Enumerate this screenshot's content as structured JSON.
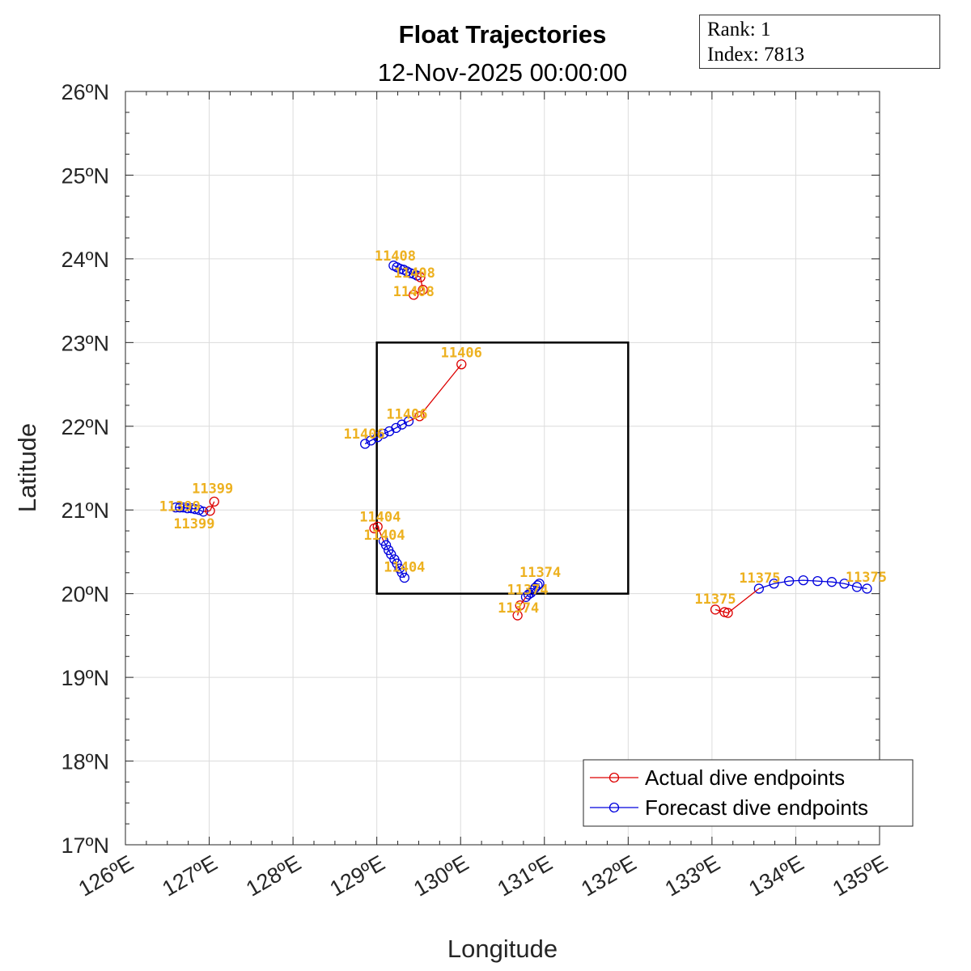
{
  "chart_data": {
    "type": "line",
    "title": "Float Trajectories",
    "subtitle": "12-Nov-2025 00:00:00",
    "xlabel": "Longitude",
    "ylabel": "Latitude",
    "xlim": [
      126,
      135
    ],
    "ylim": [
      17,
      26
    ],
    "xticks": [
      "126ºE",
      "127ºE",
      "128ºE",
      "129ºE",
      "130ºE",
      "131ºE",
      "132ºE",
      "133ºE",
      "134ºE",
      "135ºE"
    ],
    "yticks": [
      "17ºN",
      "18ºN",
      "19ºN",
      "20ºN",
      "21ºN",
      "22ºN",
      "23ºN",
      "24ºN",
      "25ºN",
      "26ºN"
    ],
    "grid": true,
    "legend_position": "bottom-right",
    "region_box": {
      "lon": [
        129,
        132
      ],
      "lat": [
        20,
        23
      ],
      "color": "#000000"
    },
    "series": [
      {
        "name": "Actual dive endpoints",
        "color": "#DD0000",
        "marker": "circle"
      },
      {
        "name": "Forecast dive endpoints",
        "color": "#0000DD",
        "marker": "circle"
      }
    ],
    "floats": [
      {
        "id": "11408",
        "actual": {
          "lon": [
            129.44,
            129.55,
            129.52
          ],
          "lat": [
            23.57,
            23.63,
            23.78
          ]
        },
        "forecast": {
          "lon": [
            129.48,
            129.44,
            129.4,
            129.36,
            129.32,
            129.28,
            129.24,
            129.2
          ],
          "lat": [
            23.8,
            23.82,
            23.83,
            23.85,
            23.87,
            23.88,
            23.9,
            23.92
          ]
        }
      },
      {
        "id": "11406",
        "actual": {
          "lon": [
            130.01,
            129.51
          ],
          "lat": [
            22.74,
            22.12
          ]
        },
        "forecast": {
          "lon": [
            129.38,
            129.3,
            129.23,
            129.15,
            129.08,
            129.01,
            128.93,
            128.86
          ],
          "lat": [
            22.06,
            22.02,
            21.98,
            21.94,
            21.91,
            21.87,
            21.83,
            21.79
          ]
        }
      },
      {
        "id": "11399",
        "actual": {
          "lon": [
            127.06,
            127.01
          ],
          "lat": [
            21.1,
            20.99
          ]
        },
        "forecast": {
          "lon": [
            126.93,
            126.88,
            126.83,
            126.79,
            126.74,
            126.69,
            126.65,
            126.6
          ],
          "lat": [
            20.98,
            21.0,
            21.01,
            21.02,
            21.02,
            21.03,
            21.03,
            21.03
          ]
        }
      },
      {
        "id": "11404",
        "actual": {
          "lon": [
            128.97,
            129.01
          ],
          "lat": [
            20.78,
            20.8
          ]
        },
        "forecast": {
          "lon": [
            129.08,
            129.11,
            129.14,
            129.17,
            129.21,
            129.24,
            129.27,
            129.3,
            129.33
          ],
          "lat": [
            20.63,
            20.58,
            20.52,
            20.47,
            20.41,
            20.36,
            20.3,
            20.25,
            20.19
          ]
        }
      },
      {
        "id": "11374",
        "actual": {
          "lon": [
            130.68,
            130.71
          ],
          "lat": [
            19.74,
            19.86
          ]
        },
        "forecast": {
          "lon": [
            130.78,
            130.81,
            130.84,
            130.86,
            130.89,
            130.92,
            130.94
          ],
          "lat": [
            19.96,
            19.99,
            20.01,
            20.04,
            20.07,
            20.1,
            20.12
          ]
        }
      },
      {
        "id": "11375",
        "actual": {
          "lon": [
            133.04,
            133.15,
            133.19
          ],
          "lat": [
            19.81,
            19.78,
            19.77
          ]
        },
        "forecast": {
          "lon": [
            133.56,
            133.74,
            133.92,
            134.09,
            134.26,
            134.43,
            134.58,
            134.73,
            134.85
          ],
          "lat": [
            20.06,
            20.12,
            20.15,
            20.16,
            20.15,
            20.14,
            20.12,
            20.08,
            20.06
          ]
        }
      }
    ],
    "annotations": [
      {
        "text": "11408",
        "lon": 129.22,
        "lat": 24.04
      },
      {
        "text": "11408",
        "lon": 129.45,
        "lat": 23.93
      },
      {
        "text": "11408",
        "lon": 129.44,
        "lat": 23.69
      },
      {
        "text": "11406",
        "lon": 130.01,
        "lat": 22.88
      },
      {
        "text": "11406",
        "lon": 129.36,
        "lat": 22.15
      },
      {
        "text": "11406",
        "lon": 128.85,
        "lat": 21.91
      },
      {
        "text": "11399",
        "lon": 127.04,
        "lat": 21.26
      },
      {
        "text": "11399",
        "lon": 126.65,
        "lat": 21.16
      },
      {
        "text": "11399",
        "lon": 126.82,
        "lat": 21.11
      },
      {
        "text": "11404",
        "lon": 129.04,
        "lat": 20.92
      },
      {
        "text": "11404",
        "lon": 129.09,
        "lat": 20.74
      },
      {
        "text": "11404",
        "lon": 129.33,
        "lat": 20.32
      },
      {
        "text": "11374",
        "lon": 130.95,
        "lat": 20.26
      },
      {
        "text": "11374",
        "lon": 130.8,
        "lat": 20.09
      },
      {
        "text": "11374",
        "lon": 130.69,
        "lat": 19.87
      },
      {
        "text": "11375",
        "lon": 133.04,
        "lat": 19.94
      },
      {
        "text": "11375",
        "lon": 133.57,
        "lat": 20.19
      },
      {
        "text": "11375",
        "lon": 134.84,
        "lat": 20.2
      }
    ],
    "label_color": "#EDB120"
  },
  "info_box": {
    "rank_label": "Rank:",
    "rank": "1",
    "index_label": "Index:",
    "index": "7813"
  }
}
